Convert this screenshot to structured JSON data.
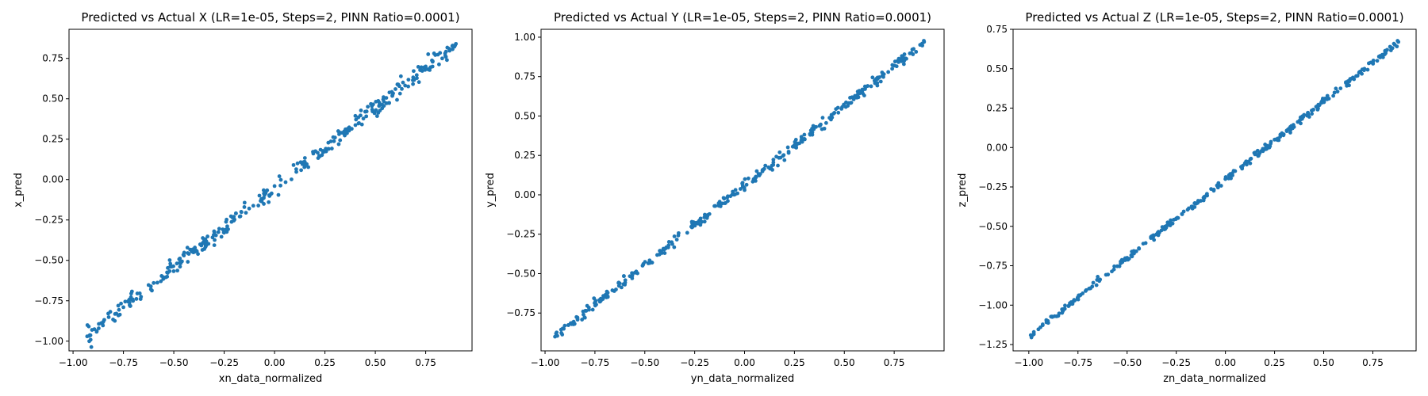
{
  "chart_data": [
    {
      "type": "scatter",
      "title": "Predicted vs Actual X (LR=1e-05, Steps=2, PINN Ratio=0.0001)",
      "xlabel": "xn_data_normalized",
      "ylabel": "x_pred",
      "xlim": [
        -1.02,
        0.98
      ],
      "ylim": [
        -1.06,
        0.93
      ],
      "xticks": [
        -1.0,
        -0.75,
        -0.5,
        -0.25,
        0.0,
        0.25,
        0.5,
        0.75
      ],
      "yticks": [
        -1.0,
        -0.75,
        -0.5,
        -0.25,
        0.0,
        0.25,
        0.5,
        0.75
      ],
      "xtick_labels": [
        "−1.00",
        "−0.75",
        "−0.50",
        "−0.25",
        "0.00",
        "0.25",
        "0.50",
        "0.75"
      ],
      "ytick_labels": [
        "−1.00",
        "−0.75",
        "−0.50",
        "−0.25",
        "0.00",
        "0.25",
        "0.50",
        "0.75"
      ],
      "color": "#1f77b4",
      "grid": false,
      "trend": {
        "x_start": -0.93,
        "y_start": -0.97,
        "x_end": 0.9,
        "y_end": 0.84,
        "spread": 0.025,
        "n": 320
      },
      "points": [
        [
          -0.93,
          -0.97
        ],
        [
          -0.85,
          -0.88
        ],
        [
          -0.75,
          -0.79
        ],
        [
          -0.6,
          -0.64
        ],
        [
          -0.45,
          -0.47
        ],
        [
          -0.3,
          -0.32
        ],
        [
          -0.15,
          -0.17
        ],
        [
          0.0,
          -0.04
        ],
        [
          0.15,
          0.11
        ],
        [
          0.3,
          0.26
        ],
        [
          0.45,
          0.42
        ],
        [
          0.6,
          0.56
        ],
        [
          0.75,
          0.7
        ],
        [
          0.9,
          0.84
        ]
      ]
    },
    {
      "type": "scatter",
      "title": "Predicted vs Actual Y (LR=1e-05, Steps=2, PINN Ratio=0.0001)",
      "xlabel": "yn_data_normalized",
      "ylabel": "y_pred",
      "xlim": [
        -1.02,
        1.0
      ],
      "ylim": [
        -0.99,
        1.05
      ],
      "xticks": [
        -1.0,
        -0.75,
        -0.5,
        -0.25,
        0.0,
        0.25,
        0.5,
        0.75
      ],
      "yticks": [
        -0.75,
        -0.5,
        -0.25,
        0.0,
        0.25,
        0.5,
        0.75,
        1.0
      ],
      "xtick_labels": [
        "−1.00",
        "−0.75",
        "−0.50",
        "−0.25",
        "0.00",
        "0.25",
        "0.50",
        "0.75"
      ],
      "ytick_labels": [
        "−0.75",
        "−0.50",
        "−0.25",
        "0.00",
        "0.25",
        "0.50",
        "0.75",
        "1.00"
      ],
      "color": "#1f77b4",
      "grid": false,
      "trend": {
        "x_start": -0.95,
        "y_start": -0.9,
        "x_end": 0.9,
        "y_end": 0.97,
        "spread": 0.015,
        "n": 320
      },
      "points": [
        [
          -0.95,
          -0.9
        ],
        [
          -0.8,
          -0.78
        ],
        [
          -0.6,
          -0.57
        ],
        [
          -0.4,
          -0.37
        ],
        [
          -0.2,
          -0.17
        ],
        [
          0.0,
          0.03
        ],
        [
          0.2,
          0.22
        ],
        [
          0.4,
          0.42
        ],
        [
          0.6,
          0.63
        ],
        [
          0.8,
          0.85
        ],
        [
          0.9,
          0.97
        ]
      ]
    },
    {
      "type": "scatter",
      "title": "Predicted vs Actual Z (LR=1e-05, Steps=2, PINN Ratio=0.0001)",
      "xlabel": "zn_data_normalized",
      "ylabel": "z_pred",
      "xlim": [
        -1.08,
        0.97
      ],
      "ylim": [
        -1.29,
        0.75
      ],
      "xticks": [
        -1.0,
        -0.75,
        -0.5,
        -0.25,
        0.0,
        0.25,
        0.5,
        0.75
      ],
      "yticks": [
        -1.25,
        -1.0,
        -0.75,
        -0.5,
        -0.25,
        0.0,
        0.25,
        0.5,
        0.75
      ],
      "xtick_labels": [
        "−1.00",
        "−0.75",
        "−0.50",
        "−0.25",
        "0.00",
        "0.25",
        "0.50",
        "0.75"
      ],
      "ytick_labels": [
        "−1.25",
        "−1.00",
        "−0.75",
        "−0.50",
        "−0.25",
        "0.00",
        "0.25",
        "0.50",
        "0.75"
      ],
      "color": "#1f77b4",
      "grid": false,
      "trend": {
        "x_start": -0.99,
        "y_start": -1.19,
        "x_end": 0.88,
        "y_end": 0.67,
        "spread": 0.01,
        "n": 320
      },
      "points": [
        [
          -0.99,
          -1.19
        ],
        [
          -0.75,
          -0.95
        ],
        [
          -0.5,
          -0.7
        ],
        [
          -0.25,
          -0.45
        ],
        [
          0.0,
          -0.2
        ],
        [
          0.25,
          0.05
        ],
        [
          0.5,
          0.3
        ],
        [
          0.75,
          0.54
        ],
        [
          0.88,
          0.67
        ]
      ]
    }
  ]
}
